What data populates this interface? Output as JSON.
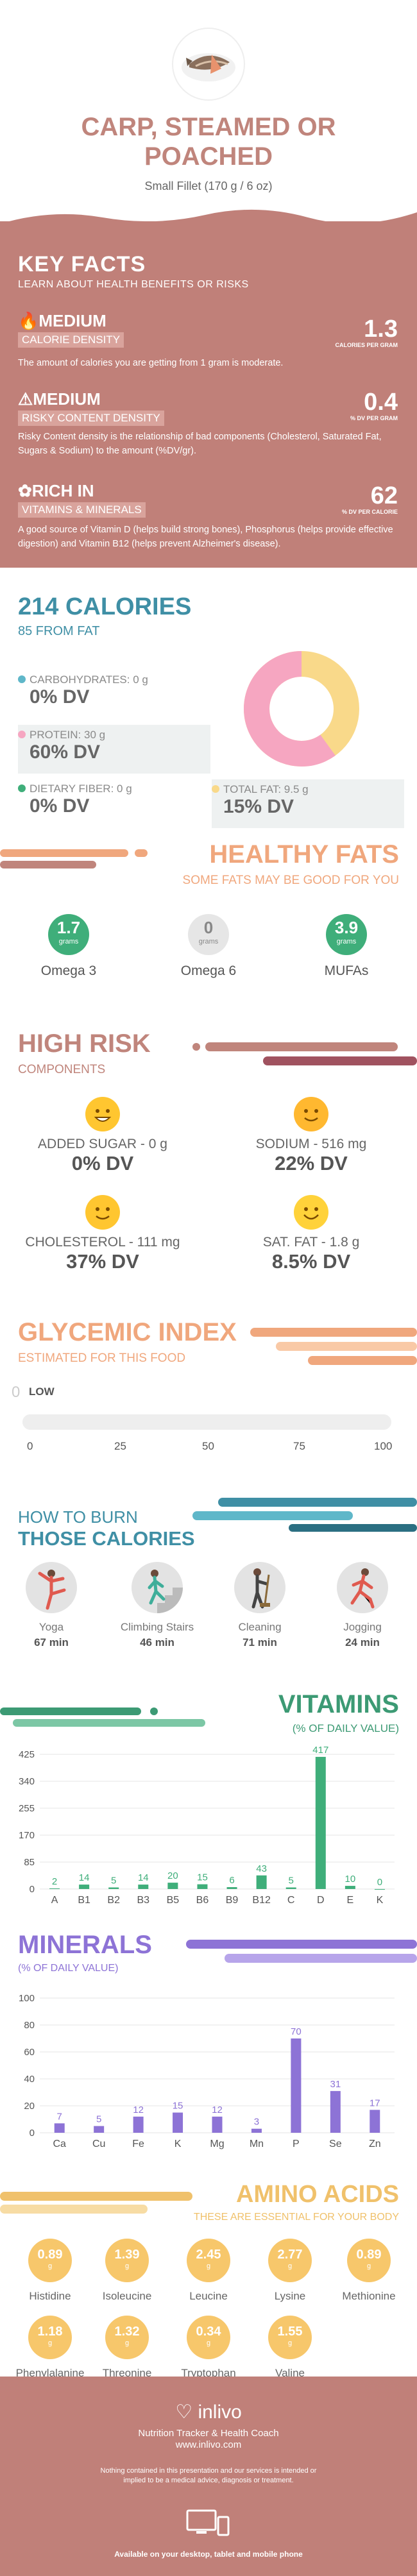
{
  "header": {
    "title_line1": "CARP, STEAMED OR",
    "title_line2": "POACHED",
    "serving": "Small Fillet (170 g / 6 oz)"
  },
  "key_facts": {
    "heading": "KEY FACTS",
    "subheading": "LEARN ABOUT HEALTH BENEFITS OR RISKS",
    "items": [
      {
        "level": "MEDIUM",
        "label": "CALORIE DENSITY",
        "value": "1.3",
        "unit": "CALORIES PER GRAM",
        "desc": "The amount of calories you are getting from 1 gram is moderate."
      },
      {
        "level": "MEDIUM",
        "label": "RISKY CONTENT DENSITY",
        "value": "0.4",
        "unit": "% DV PER GRAM",
        "desc": "Risky Content density is the relationship of bad components (Cholesterol, Saturated Fat, Sugars & Sodium) to the amount (%DV/gr)."
      },
      {
        "level": "RICH  IN",
        "label": "VITAMINS & MINERALS",
        "value": "62",
        "unit": "% DV PER CALORIE",
        "desc": "A good source of Vitamin D (helps build strong bones), Phosphorus (helps provide effective digestion) and Vitamin B12 (helps prevent Alzheimer's disease)."
      }
    ]
  },
  "calories": {
    "heading": "214 CALORIES",
    "subheading": "85 FROM FAT",
    "carbs_label": "CARBOHYDRATES: 0 g",
    "carbs_dv": "0% DV",
    "protein_label": "PROTEIN: 30 g",
    "protein_dv": "60% DV",
    "fiber_label": "DIETARY FIBER: 0 g",
    "fiber_dv": "0% DV",
    "fat_label": "TOTAL FAT: 9.5 g",
    "fat_dv": "15% DV",
    "donut": {
      "protein_share": 0.6,
      "fat_share": 0.4,
      "protein_color": "#f6a6c1",
      "fat_color": "#f9d98a"
    }
  },
  "healthy_fats": {
    "heading": "HEALTHY FATS",
    "subheading": "SOME FATS MAY BE GOOD FOR YOU",
    "items": [
      {
        "value": "1.7",
        "unit": "grams",
        "label": "Omega 3",
        "color": "#3fae7a"
      },
      {
        "value": "0",
        "unit": "grams",
        "label": "Omega 6",
        "color": "#e6e6e6"
      },
      {
        "value": "3.9",
        "unit": "grams",
        "label": "MUFAs",
        "color": "#3fae7a"
      }
    ]
  },
  "high_risk": {
    "heading": "HIGH RISK",
    "subheading": "COMPONENTS",
    "items": [
      {
        "label": "ADDED SUGAR - 0 g",
        "dv": "0% DV"
      },
      {
        "label": "SODIUM - 516 mg",
        "dv": "22% DV"
      },
      {
        "label": "CHOLESTEROL - 111 mg",
        "dv": "37% DV"
      },
      {
        "label": "SAT. FAT - 1.8 g",
        "dv": "8.5% DV"
      }
    ]
  },
  "glycemic": {
    "heading": "GLYCEMIC INDEX",
    "subheading": "ESTIMATED FOR THIS FOOD",
    "value": "0",
    "level": "LOW",
    "ticks": [
      "0",
      "25",
      "50",
      "75",
      "100"
    ]
  },
  "burn": {
    "heading1": "HOW TO BURN",
    "heading2": "THOSE CALORIES",
    "items": [
      {
        "label": "Yoga",
        "minutes": "67 min"
      },
      {
        "label": "Climbing Stairs",
        "minutes": "46 min"
      },
      {
        "label": "Cleaning",
        "minutes": "71 min"
      },
      {
        "label": "Jogging",
        "minutes": "24 min"
      }
    ]
  },
  "vitamins": {
    "heading": "VITAMINS",
    "subheading": "(% OF DAILY VALUE)"
  },
  "minerals": {
    "heading": "MINERALS",
    "subheading": "(% OF DAILY VALUE)"
  },
  "amino": {
    "heading": "AMINO ACIDS",
    "subheading": "THESE ARE ESSENTIAL FOR YOUR BODY",
    "unit": "g",
    "items": [
      {
        "value": "0.89",
        "label": "Histidine"
      },
      {
        "value": "1.39",
        "label": "Isoleucine"
      },
      {
        "value": "2.45",
        "label": "Leucine"
      },
      {
        "value": "2.77",
        "label": "Lysine"
      },
      {
        "value": "0.89",
        "label": "Methionine"
      },
      {
        "value": "1.18",
        "label": "Phenylalanine"
      },
      {
        "value": "1.32",
        "label": "Threonine"
      },
      {
        "value": "0.34",
        "label": "Tryptophan"
      },
      {
        "value": "1.55",
        "label": "Valine"
      }
    ]
  },
  "footer": {
    "brand": "inlivo",
    "tagline": "Nutrition Tracker & Health Coach",
    "url": "www.inlivo.com",
    "disclaimer": "Nothing contained in this presentation and our services is intended or implied to be a medical advice, diagnosis or treatment.",
    "available": "Available on your desktop, tablet and mobile phone"
  },
  "chart_data": [
    {
      "type": "bar",
      "categories": [
        "A",
        "B1",
        "B2",
        "B3",
        "B5",
        "B6",
        "B9",
        "B12",
        "C",
        "D",
        "E",
        "K"
      ],
      "values": [
        2,
        14,
        5,
        14,
        20,
        15,
        6,
        43,
        5,
        417,
        10,
        0
      ],
      "title": "VITAMINS",
      "ylabel": "(% OF DAILY VALUE)",
      "yticks": [
        0,
        85,
        170,
        255,
        340,
        425
      ],
      "ylim": [
        0,
        425
      ],
      "color": "#3fae7a",
      "grid": true
    },
    {
      "type": "bar",
      "categories": [
        "Ca",
        "Cu",
        "Fe",
        "K",
        "Mg",
        "Mn",
        "P",
        "Se",
        "Zn"
      ],
      "values": [
        7,
        5,
        12,
        15,
        12,
        3,
        70,
        31,
        17
      ],
      "title": "MINERALS",
      "ylabel": "(% OF DAILY VALUE)",
      "yticks": [
        0,
        20,
        40,
        60,
        80,
        100
      ],
      "ylim": [
        0,
        100
      ],
      "color": "#8d73d6",
      "grid": true
    }
  ]
}
